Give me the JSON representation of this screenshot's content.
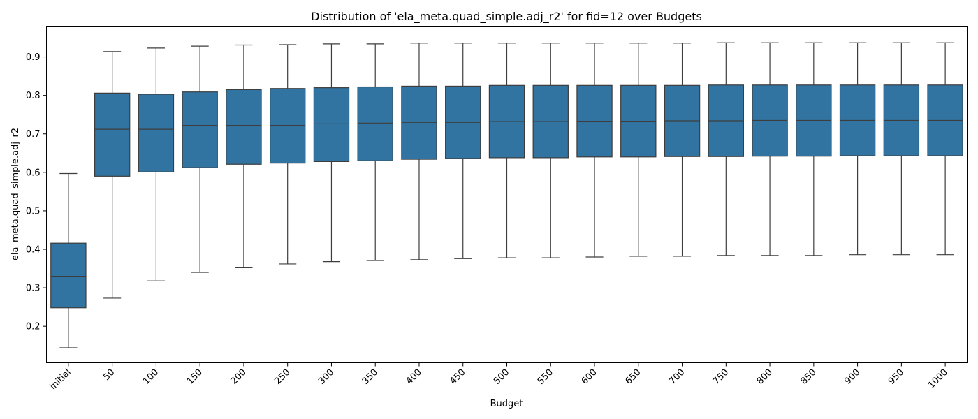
{
  "chart_data": {
    "type": "box",
    "title": "Distribution of 'ela_meta.quad_simple.adj_r2' for fid=12 over Budgets",
    "xlabel": "Budget",
    "ylabel": "ela_meta.quad_simple.adj_r2",
    "ylim": [
      0.105,
      0.98
    ],
    "yticks": [
      0.2,
      0.3,
      0.4,
      0.5,
      0.6,
      0.7,
      0.8,
      0.9
    ],
    "ytick_labels": [
      "0.2",
      "0.3",
      "0.4",
      "0.5",
      "0.6",
      "0.7",
      "0.8",
      "0.9"
    ],
    "grid": false,
    "box_color": "#3274a1",
    "line_color": "#3d3d3d",
    "categories": [
      "initial",
      "50",
      "100",
      "150",
      "200",
      "250",
      "300",
      "350",
      "400",
      "450",
      "500",
      "550",
      "600",
      "650",
      "700",
      "750",
      "800",
      "850",
      "900",
      "950",
      "1000"
    ],
    "boxes": [
      {
        "whislo": 0.144,
        "q1": 0.248,
        "med": 0.33,
        "q3": 0.416,
        "whishi": 0.597
      },
      {
        "whislo": 0.273,
        "q1": 0.59,
        "med": 0.712,
        "q3": 0.806,
        "whishi": 0.914
      },
      {
        "whislo": 0.318,
        "q1": 0.601,
        "med": 0.712,
        "q3": 0.803,
        "whishi": 0.923
      },
      {
        "whislo": 0.34,
        "q1": 0.612,
        "med": 0.722,
        "q3": 0.809,
        "whishi": 0.928
      },
      {
        "whislo": 0.352,
        "q1": 0.621,
        "med": 0.722,
        "q3": 0.815,
        "whishi": 0.931
      },
      {
        "whislo": 0.362,
        "q1": 0.624,
        "med": 0.722,
        "q3": 0.818,
        "whishi": 0.932
      },
      {
        "whislo": 0.368,
        "q1": 0.628,
        "med": 0.726,
        "q3": 0.82,
        "whishi": 0.934
      },
      {
        "whislo": 0.371,
        "q1": 0.63,
        "med": 0.728,
        "q3": 0.822,
        "whishi": 0.934
      },
      {
        "whislo": 0.373,
        "q1": 0.634,
        "med": 0.73,
        "q3": 0.824,
        "whishi": 0.936
      },
      {
        "whislo": 0.376,
        "q1": 0.636,
        "med": 0.73,
        "q3": 0.824,
        "whishi": 0.936
      },
      {
        "whislo": 0.378,
        "q1": 0.638,
        "med": 0.732,
        "q3": 0.826,
        "whishi": 0.936
      },
      {
        "whislo": 0.378,
        "q1": 0.638,
        "med": 0.732,
        "q3": 0.826,
        "whishi": 0.936
      },
      {
        "whislo": 0.38,
        "q1": 0.64,
        "med": 0.733,
        "q3": 0.826,
        "whishi": 0.936
      },
      {
        "whislo": 0.382,
        "q1": 0.64,
        "med": 0.733,
        "q3": 0.826,
        "whishi": 0.936
      },
      {
        "whislo": 0.382,
        "q1": 0.641,
        "med": 0.734,
        "q3": 0.826,
        "whishi": 0.936
      },
      {
        "whislo": 0.384,
        "q1": 0.641,
        "med": 0.734,
        "q3": 0.827,
        "whishi": 0.937
      },
      {
        "whislo": 0.384,
        "q1": 0.642,
        "med": 0.735,
        "q3": 0.827,
        "whishi": 0.937
      },
      {
        "whislo": 0.384,
        "q1": 0.642,
        "med": 0.735,
        "q3": 0.827,
        "whishi": 0.937
      },
      {
        "whislo": 0.386,
        "q1": 0.643,
        "med": 0.735,
        "q3": 0.827,
        "whishi": 0.937
      },
      {
        "whislo": 0.386,
        "q1": 0.643,
        "med": 0.735,
        "q3": 0.827,
        "whishi": 0.937
      },
      {
        "whislo": 0.386,
        "q1": 0.643,
        "med": 0.735,
        "q3": 0.827,
        "whishi": 0.937
      }
    ]
  }
}
